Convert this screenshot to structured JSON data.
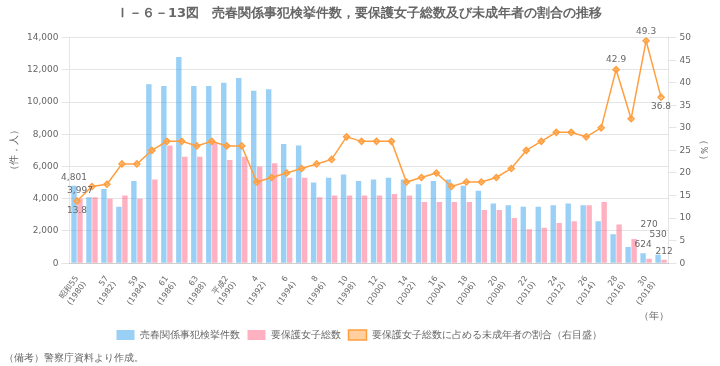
{
  "chart_data": {
    "type": "bar",
    "title": "Ｉ－６－13図　売春関係事犯検挙件数，要保護女子総数及び未成年者の割合の推移",
    "ylabel": "（件，人）",
    "y2label": "（％）",
    "xlabel": "（年）",
    "footer": "（備考）警察庁資料より作成。",
    "categories": [
      "昭和55\n(1980)",
      null,
      "57\n(1982)",
      null,
      "59\n(1984)",
      null,
      "61\n(1986)",
      null,
      "63\n(1988)",
      null,
      "平成2\n(1990)",
      null,
      "4\n(1992)",
      null,
      "6\n(1994)",
      null,
      "8\n(1996)",
      null,
      "10\n(1998)",
      null,
      "12\n(2000)",
      null,
      "14\n(2002)",
      null,
      "16\n(2004)",
      null,
      "18\n(2006)",
      null,
      "20\n(2008)",
      null,
      "22\n(2010)",
      null,
      "24\n(2012)",
      null,
      "26\n(2014)",
      null,
      "28\n(2016)",
      null,
      "30\n(2018)",
      null
    ],
    "series": [
      {
        "name": "売春関係事犯検挙件数",
        "type": "bar",
        "values": [
          4801,
          4100,
          4600,
          3500,
          5100,
          11100,
          11000,
          12800,
          11000,
          11000,
          11200,
          11500,
          10700,
          10800,
          7400,
          7300,
          5000,
          5300,
          5500,
          5100,
          5200,
          5300,
          5200,
          4900,
          5100,
          5200,
          4800,
          4500,
          3700,
          3600,
          3500,
          3500,
          3600,
          3700,
          3600,
          2600,
          1800,
          1000,
          624,
          530
        ],
        "value_labels": [
          "4,801",
          null,
          null,
          null,
          null,
          null,
          null,
          null,
          null,
          null,
          null,
          null,
          null,
          null,
          null,
          null,
          null,
          null,
          null,
          null,
          null,
          null,
          null,
          null,
          null,
          null,
          null,
          null,
          null,
          null,
          null,
          null,
          null,
          null,
          null,
          null,
          null,
          null,
          "624",
          "530"
        ]
      },
      {
        "name": "要保護女子総数",
        "type": "bar",
        "values": [
          3997,
          4100,
          4000,
          4200,
          4000,
          5200,
          7300,
          6600,
          6600,
          7500,
          6400,
          6600,
          6000,
          6200,
          5300,
          5300,
          4100,
          4200,
          4200,
          4200,
          4200,
          4300,
          4200,
          3800,
          3800,
          3800,
          3800,
          3300,
          3300,
          2800,
          2100,
          2200,
          2500,
          2600,
          3600,
          3800,
          2400,
          1500,
          270,
          212
        ],
        "value_labels": [
          "3,997",
          null,
          null,
          null,
          null,
          null,
          null,
          null,
          null,
          null,
          null,
          null,
          null,
          null,
          null,
          null,
          null,
          null,
          null,
          null,
          null,
          null,
          null,
          null,
          null,
          null,
          null,
          null,
          null,
          null,
          null,
          null,
          null,
          null,
          null,
          null,
          null,
          null,
          "270",
          "212"
        ]
      },
      {
        "name": "要保護女子総数に占める未成年者の割合（右目盛）",
        "type": "line",
        "axis": "y2",
        "marker": "diamond",
        "values": [
          13.8,
          17.0,
          17.5,
          22.0,
          22.0,
          25.0,
          27.0,
          27.0,
          26.0,
          27.0,
          26.0,
          26.0,
          18.0,
          19.0,
          20.0,
          21.0,
          22.0,
          23.0,
          28.0,
          27.0,
          27.0,
          27.0,
          18.0,
          19.0,
          20.0,
          17.0,
          18.0,
          18.0,
          19.0,
          21.0,
          25.0,
          27.0,
          29.0,
          29.0,
          28.0,
          30.0,
          42.9,
          32.0,
          49.3,
          36.8
        ],
        "value_labels": [
          "13.8",
          null,
          null,
          null,
          null,
          null,
          null,
          null,
          null,
          null,
          null,
          null,
          null,
          null,
          null,
          null,
          null,
          null,
          null,
          null,
          null,
          null,
          null,
          null,
          null,
          null,
          null,
          null,
          null,
          null,
          null,
          null,
          null,
          null,
          null,
          null,
          "42.9",
          null,
          "49.3",
          "36.8"
        ]
      }
    ],
    "ylim": [
      0,
      14000
    ],
    "yticks": [
      0,
      {
        "value": 2000,
        "label": "2,000"
      },
      {
        "value": 4000,
        "label": "4,000"
      },
      {
        "value": 6000,
        "label": "6,000"
      },
      {
        "value": 8000,
        "label": "8,000"
      },
      {
        "value": 10000,
        "label": "10,000"
      },
      {
        "value": 12000,
        "label": "12,000"
      },
      {
        "value": 14000,
        "label": "14,000"
      }
    ],
    "y2lim": [
      0,
      50
    ],
    "y2ticks": [
      0,
      5,
      10,
      15,
      20,
      25,
      30,
      35,
      40,
      45,
      50
    ],
    "grid": true,
    "legend": "bottom"
  }
}
